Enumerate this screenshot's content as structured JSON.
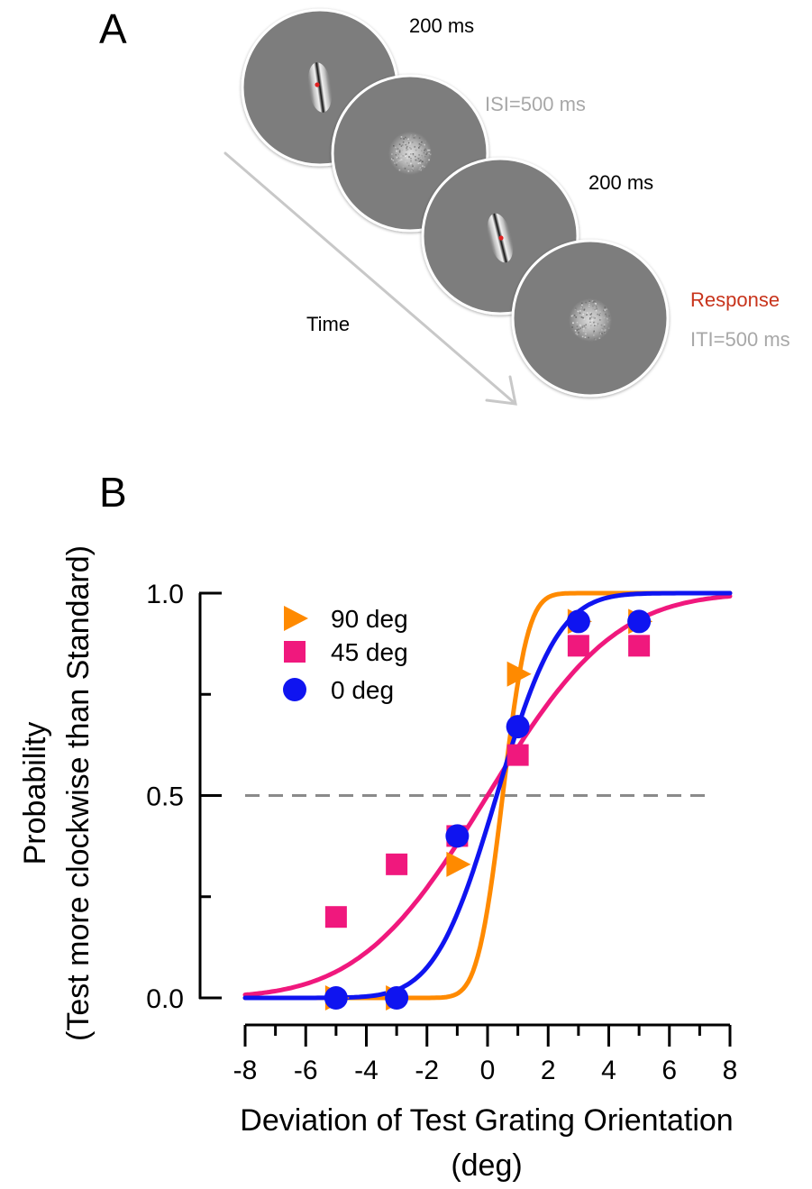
{
  "panel_a": {
    "letter": "A",
    "labels": {
      "stim1": "200 ms",
      "isi": "ISI=500 ms",
      "stim2": "200 ms",
      "response": "Response",
      "iti": "ITI=500 ms",
      "time": "Time"
    },
    "colors": {
      "stim_time": "#000000",
      "interval": "#a8a8a8",
      "response": "#c8341c",
      "disc": "#7d7d7d",
      "fixation": "#e02020"
    }
  },
  "panel_b": {
    "letter": "B"
  },
  "chart_data": {
    "type": "scatter",
    "xlabel_line1": "Deviation of Test Grating Orientation",
    "xlabel_line2": "(deg)",
    "ylabel_line1": "Probability",
    "ylabel_line2": "(Test more clockwise than Standard)",
    "xlim": [
      -8,
      8
    ],
    "ylim": [
      0,
      1
    ],
    "x_ticks": [
      -8,
      -6,
      -4,
      -2,
      0,
      2,
      4,
      6,
      8
    ],
    "x_tick_labels": [
      "-8",
      "-6",
      "-4",
      "-2",
      "0",
      "2",
      "4",
      "6",
      "8"
    ],
    "y_ticks": [
      0.0,
      0.5,
      1.0
    ],
    "y_tick_labels": [
      "0.0",
      "0.5",
      "1.0"
    ],
    "reference_line": {
      "y": 0.5,
      "style": "dashed",
      "color": "#8a8a8a"
    },
    "legend_position": "top-left",
    "series": [
      {
        "name": "90 deg",
        "marker": "triangle-right",
        "color": "#ff8a00",
        "x": [
          -5,
          -3,
          -1,
          1,
          3,
          5
        ],
        "y": [
          0.0,
          0.0,
          0.33,
          0.8,
          0.93,
          0.93
        ],
        "fit": {
          "mu": 0.5,
          "sigma": 0.65
        }
      },
      {
        "name": "45 deg",
        "marker": "square",
        "color": "#f0187d",
        "x": [
          -5,
          -3,
          -1,
          1,
          3,
          5
        ],
        "y": [
          0.2,
          0.33,
          0.4,
          0.6,
          0.87,
          0.87
        ],
        "fit": {
          "mu": 0.0,
          "sigma": 3.3
        }
      },
      {
        "name": "0 deg",
        "marker": "circle",
        "color": "#0f14f0",
        "x": [
          -5,
          -3,
          -1,
          1,
          3,
          5
        ],
        "y": [
          0.0,
          0.0,
          0.4,
          0.67,
          0.93,
          0.93
        ],
        "fit": {
          "mu": 0.3,
          "sigma": 1.6
        }
      }
    ]
  }
}
